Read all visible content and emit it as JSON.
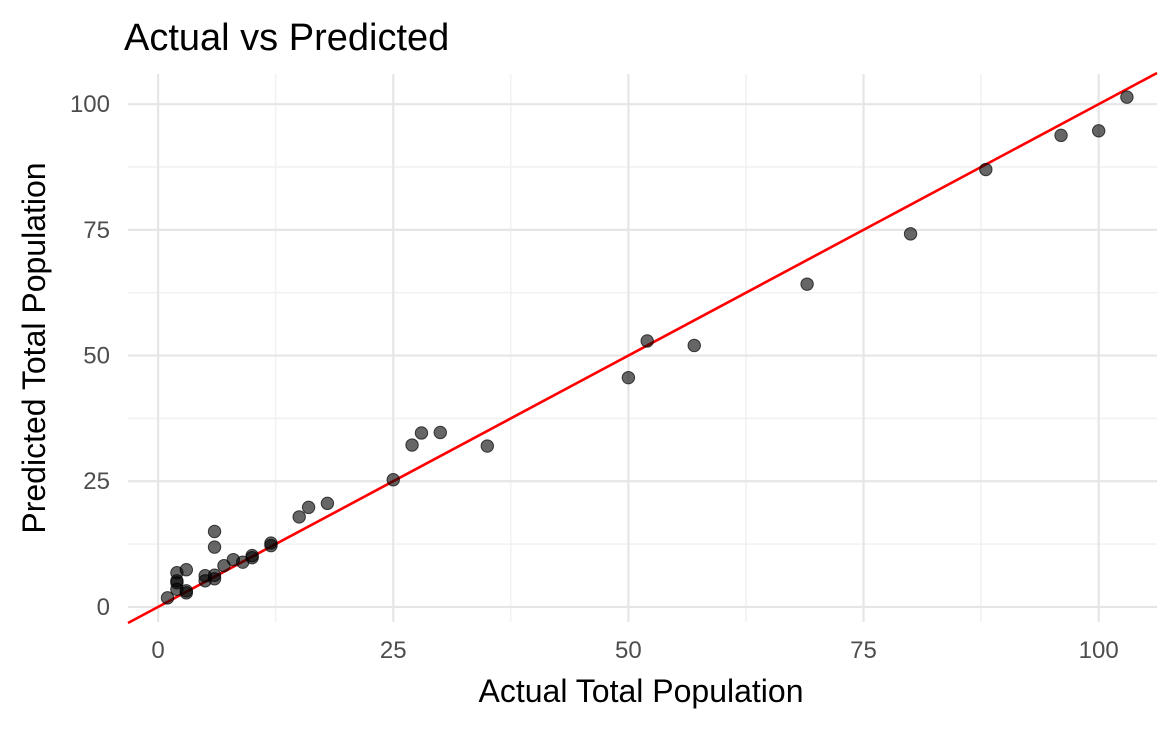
{
  "chart_data": {
    "type": "scatter",
    "title": "Actual vs Predicted",
    "xlabel": "Actual Total Population",
    "ylabel": "Predicted Total Population",
    "xlim": [
      -3.2,
      106.2
    ],
    "ylim": [
      -3.0,
      106.0
    ],
    "x_ticks": [
      0,
      25,
      50,
      75,
      100
    ],
    "x_tick_labels": [
      "0",
      "25",
      "50",
      "75",
      "100"
    ],
    "y_ticks": [
      0,
      25,
      50,
      75,
      100
    ],
    "y_tick_labels": [
      "0",
      "25",
      "50",
      "75",
      "100"
    ],
    "grid": true,
    "reference_line": {
      "slope": 1,
      "intercept": 0,
      "color": "#ff0000"
    },
    "point_color": "#000000",
    "points": [
      {
        "x": 1,
        "y": 1.8
      },
      {
        "x": 2,
        "y": 3.5
      },
      {
        "x": 2,
        "y": 4.8
      },
      {
        "x": 2,
        "y": 5.2
      },
      {
        "x": 2,
        "y": 6.8
      },
      {
        "x": 3,
        "y": 2.8
      },
      {
        "x": 3,
        "y": 3.2
      },
      {
        "x": 3,
        "y": 7.4
      },
      {
        "x": 5,
        "y": 5.2
      },
      {
        "x": 5,
        "y": 6.2
      },
      {
        "x": 6,
        "y": 5.6
      },
      {
        "x": 6,
        "y": 6.3
      },
      {
        "x": 6,
        "y": 11.9
      },
      {
        "x": 6,
        "y": 15.0
      },
      {
        "x": 7,
        "y": 8.2
      },
      {
        "x": 8,
        "y": 9.4
      },
      {
        "x": 9,
        "y": 8.9
      },
      {
        "x": 10,
        "y": 9.8
      },
      {
        "x": 10,
        "y": 10.2
      },
      {
        "x": 12,
        "y": 12.2
      },
      {
        "x": 12,
        "y": 12.7
      },
      {
        "x": 15,
        "y": 17.9
      },
      {
        "x": 16,
        "y": 19.8
      },
      {
        "x": 18,
        "y": 20.6
      },
      {
        "x": 25,
        "y": 25.3
      },
      {
        "x": 27,
        "y": 32.2
      },
      {
        "x": 28,
        "y": 34.6
      },
      {
        "x": 30,
        "y": 34.7
      },
      {
        "x": 35,
        "y": 32.0
      },
      {
        "x": 50,
        "y": 45.6
      },
      {
        "x": 52,
        "y": 52.9
      },
      {
        "x": 57,
        "y": 52.0
      },
      {
        "x": 69,
        "y": 64.2
      },
      {
        "x": 80,
        "y": 74.2
      },
      {
        "x": 88,
        "y": 87.0
      },
      {
        "x": 96,
        "y": 93.8
      },
      {
        "x": 100,
        "y": 94.7
      },
      {
        "x": 103,
        "y": 101.4
      }
    ]
  }
}
